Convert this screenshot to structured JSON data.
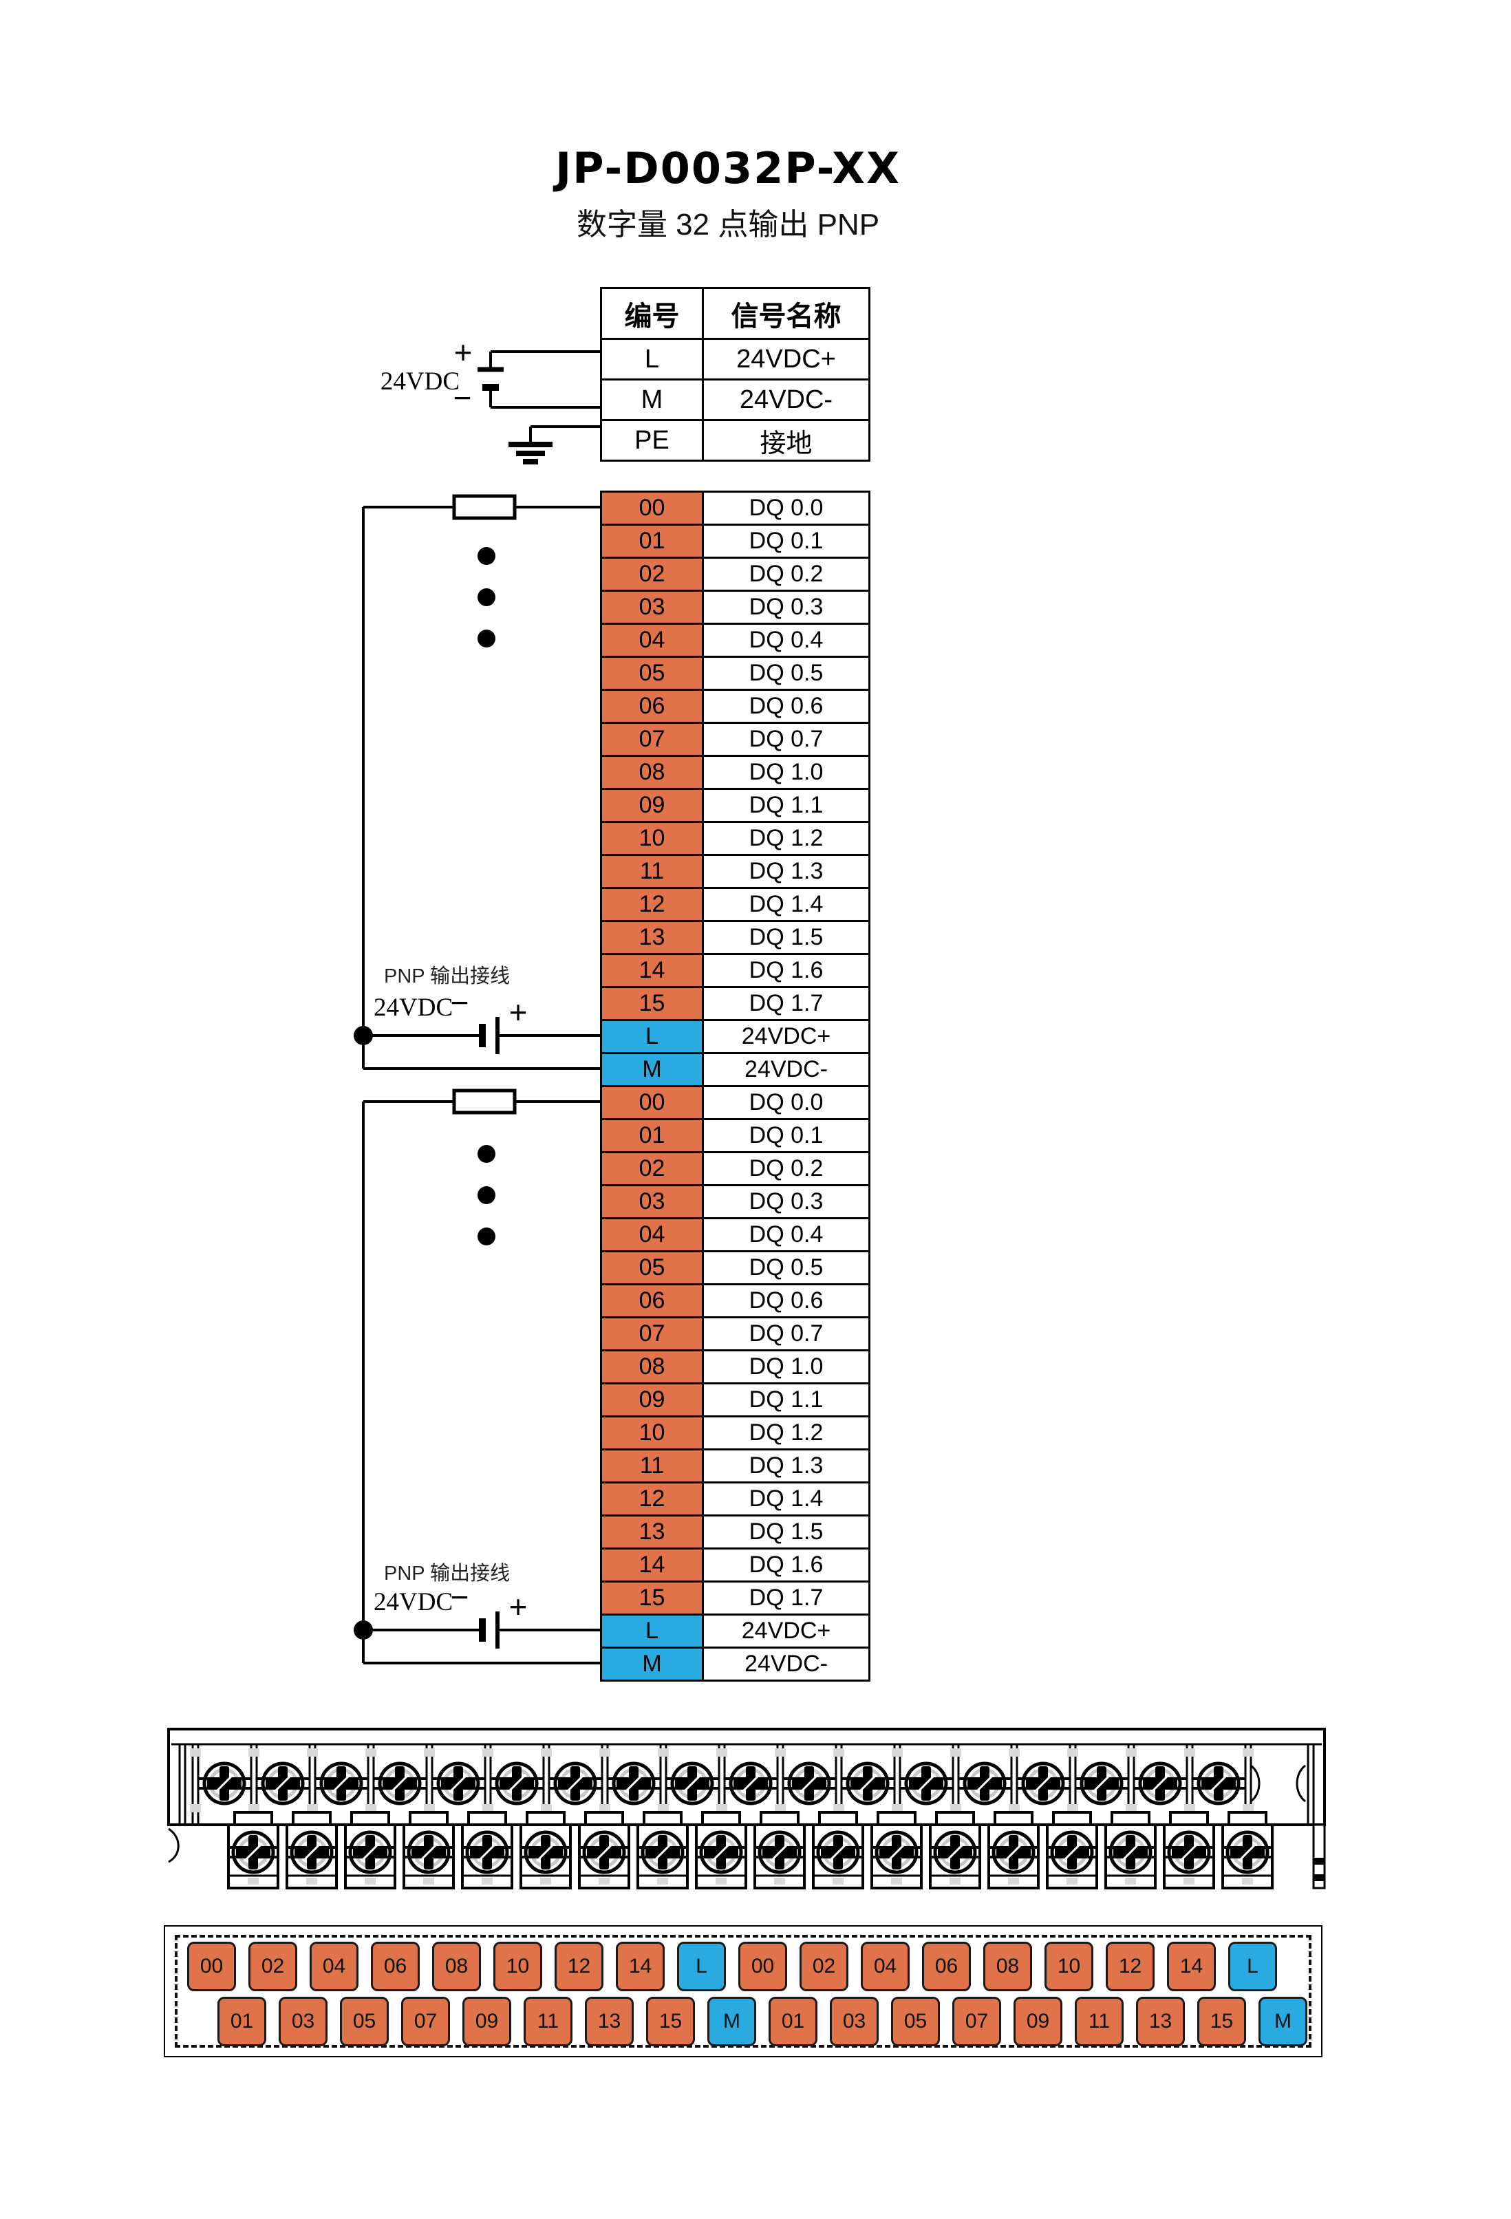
{
  "title": "JP-D0032P-XX",
  "subtitle": "数字量 32 点输出  PNP",
  "colors": {
    "orange": "#E0734A",
    "blue": "#29ABE2",
    "line": "#000000"
  },
  "power_table": {
    "headers": [
      "编号",
      "信号名称"
    ],
    "rows": [
      {
        "no": "L",
        "name": "24VDC+"
      },
      {
        "no": "M",
        "name": "24VDC-"
      },
      {
        "no": "PE",
        "name": "接地"
      }
    ]
  },
  "groups": [
    {
      "pnp_label": "PNP 输出接线",
      "supply": "24VDC",
      "plus": "+",
      "minus": "−",
      "rows": [
        {
          "no": "00",
          "name": "DQ 0.0"
        },
        {
          "no": "01",
          "name": "DQ 0.1"
        },
        {
          "no": "02",
          "name": "DQ 0.2"
        },
        {
          "no": "03",
          "name": "DQ 0.3"
        },
        {
          "no": "04",
          "name": "DQ 0.4"
        },
        {
          "no": "05",
          "name": "DQ 0.5"
        },
        {
          "no": "06",
          "name": "DQ 0.6"
        },
        {
          "no": "07",
          "name": "DQ 0.7"
        },
        {
          "no": "08",
          "name": "DQ 1.0"
        },
        {
          "no": "09",
          "name": "DQ 1.1"
        },
        {
          "no": "10",
          "name": "DQ 1.2"
        },
        {
          "no": "11",
          "name": "DQ 1.3"
        },
        {
          "no": "12",
          "name": "DQ 1.4"
        },
        {
          "no": "13",
          "name": "DQ 1.5"
        },
        {
          "no": "14",
          "name": "DQ 1.6"
        },
        {
          "no": "15",
          "name": "DQ 1.7"
        },
        {
          "no": "L",
          "name": "24VDC+"
        },
        {
          "no": "M",
          "name": "24VDC-"
        }
      ]
    },
    {
      "pnp_label": "PNP 输出接线",
      "supply": "24VDC",
      "plus": "+",
      "minus": "−",
      "rows": [
        {
          "no": "00",
          "name": "DQ 0.0"
        },
        {
          "no": "01",
          "name": "DQ 0.1"
        },
        {
          "no": "02",
          "name": "DQ 0.2"
        },
        {
          "no": "03",
          "name": "DQ 0.3"
        },
        {
          "no": "04",
          "name": "DQ 0.4"
        },
        {
          "no": "05",
          "name": "DQ 0.5"
        },
        {
          "no": "06",
          "name": "DQ 0.6"
        },
        {
          "no": "07",
          "name": "DQ 0.7"
        },
        {
          "no": "08",
          "name": "DQ 1.0"
        },
        {
          "no": "09",
          "name": "DQ 1.1"
        },
        {
          "no": "10",
          "name": "DQ 1.2"
        },
        {
          "no": "11",
          "name": "DQ 1.3"
        },
        {
          "no": "12",
          "name": "DQ 1.4"
        },
        {
          "no": "13",
          "name": "DQ 1.5"
        },
        {
          "no": "14",
          "name": "DQ 1.6"
        },
        {
          "no": "15",
          "name": "DQ 1.7"
        },
        {
          "no": "L",
          "name": "24VDC+"
        },
        {
          "no": "M",
          "name": "24VDC-"
        }
      ]
    }
  ],
  "wiring": {
    "top_supply": {
      "label": "24VDC",
      "plus": "+",
      "minus": "−"
    }
  },
  "terminal_map": {
    "top": [
      "00",
      "02",
      "04",
      "06",
      "08",
      "10",
      "12",
      "14",
      "L",
      "00",
      "02",
      "04",
      "06",
      "08",
      "10",
      "12",
      "14",
      "L"
    ],
    "bottom": [
      "01",
      "03",
      "05",
      "07",
      "09",
      "11",
      "13",
      "15",
      "M",
      "01",
      "03",
      "05",
      "07",
      "09",
      "11",
      "13",
      "15",
      "M"
    ]
  }
}
